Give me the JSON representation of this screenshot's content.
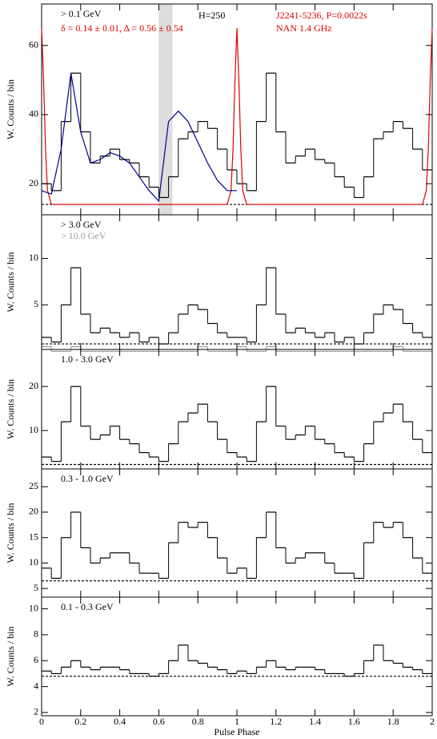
{
  "chart_data": [
    {
      "type": "histogram",
      "ylabel": "W. Counts / bin",
      "label": "> 0.1 GeV",
      "h_test": "H=250",
      "pulsar": "J2241-5236, P=0.0022s",
      "fit_params": "δ = 0.14 ± 0.01, Δ = 0.56 ± 0.54",
      "radio_label": "NAN 1.4 GHz",
      "bins": [
        0,
        0.05,
        0.1,
        0.15,
        0.2,
        0.25,
        0.3,
        0.35,
        0.4,
        0.45,
        0.5,
        0.55,
        0.6,
        0.65,
        0.7,
        0.75,
        0.8,
        0.85,
        0.9,
        0.95,
        1,
        1.05,
        1.1,
        1.15,
        1.2,
        1.25,
        1.3,
        1.35,
        1.4,
        1.45,
        1.5,
        1.55,
        1.6,
        1.65,
        1.7,
        1.75,
        1.8,
        1.85,
        1.9,
        1.95,
        2
      ],
      "values": [
        20,
        18,
        38,
        52,
        35,
        26,
        28,
        30,
        27,
        26,
        22,
        19,
        16,
        22,
        33,
        35,
        38,
        36,
        30,
        24,
        20,
        18,
        38,
        52,
        35,
        26,
        28,
        30,
        27,
        26,
        22,
        19,
        16,
        22,
        33,
        35,
        38,
        36,
        30,
        24
      ],
      "color": "#000000",
      "fit": {
        "color": "#00008b",
        "x": [
          0,
          0.05,
          0.1,
          0.15,
          0.2,
          0.25,
          0.3,
          0.35,
          0.4,
          0.45,
          0.5,
          0.55,
          0.6,
          0.65,
          0.7,
          0.75,
          0.8,
          0.85,
          0.9,
          0.95,
          1
        ],
        "values": [
          18,
          17,
          30,
          52,
          35,
          26,
          27,
          29,
          28,
          26,
          22,
          18,
          15,
          38,
          41,
          38,
          32,
          26,
          21,
          18,
          18
        ]
      },
      "radio": {
        "color": "#e00000",
        "x": [
          0,
          0.01,
          0.02,
          0.03,
          0.05,
          0.95,
          0.97,
          0.98,
          0.99,
          1,
          1.01,
          1.02,
          1.03,
          1.05,
          1.95,
          1.97,
          1.98,
          1.99,
          2
        ],
        "values": [
          65,
          50,
          30,
          18,
          14,
          14,
          18,
          30,
          50,
          65,
          50,
          30,
          18,
          14,
          14,
          18,
          30,
          50,
          65
        ]
      },
      "shade": [
        0.6,
        0.67
      ],
      "shade_color": "#dddddd",
      "background": 14,
      "xlim": [
        0,
        2
      ],
      "xticks": [
        0,
        0.2,
        0.4,
        0.6,
        0.8,
        1,
        1.2,
        1.4,
        1.6,
        1.8,
        2
      ],
      "show_xtick_labels": false,
      "ylim": [
        11,
        72
      ],
      "yticks": [
        20,
        40,
        60
      ]
    },
    {
      "type": "histogram",
      "ylabel": "W. Counts / bin",
      "label": "> 3.0 GeV",
      "sublabel": "> 10.0 GeV",
      "bins": [
        0,
        0.05,
        0.1,
        0.15,
        0.2,
        0.25,
        0.3,
        0.35,
        0.4,
        0.45,
        0.5,
        0.55,
        0.6,
        0.65,
        0.7,
        0.75,
        0.8,
        0.85,
        0.9,
        0.95,
        1,
        1.05,
        1.1,
        1.15,
        1.2,
        1.25,
        1.3,
        1.35,
        1.4,
        1.45,
        1.5,
        1.55,
        1.6,
        1.65,
        1.7,
        1.75,
        1.8,
        1.85,
        1.9,
        1.95,
        2
      ],
      "values": [
        1.5,
        1,
        5,
        9,
        4,
        2,
        2.5,
        2,
        1.5,
        2,
        1,
        1.5,
        0.8,
        2,
        4,
        5,
        4.5,
        3,
        2,
        1.5,
        1.5,
        1,
        5,
        9,
        4,
        2,
        2.5,
        2,
        1.5,
        2,
        1,
        1.5,
        0.8,
        2,
        4,
        5,
        4.5,
        3,
        2,
        1.5
      ],
      "color": "#000000",
      "sub_values": [
        0.5,
        0,
        0,
        0.5,
        0,
        0,
        0,
        0,
        0,
        0,
        0,
        0,
        0,
        0,
        0,
        0,
        0.5,
        0,
        0,
        0,
        0.5,
        0,
        0,
        0.5,
        0,
        0,
        0,
        0,
        0,
        0,
        0,
        0,
        0,
        0,
        0,
        0,
        0.5,
        0,
        0,
        0
      ],
      "sub_color": "#999999",
      "background": 0.8,
      "xlim": [
        0,
        2
      ],
      "xticks": [
        0,
        0.2,
        0.4,
        0.6,
        0.8,
        1,
        1.2,
        1.4,
        1.6,
        1.8,
        2
      ],
      "show_xtick_labels": false,
      "ylim": [
        0.2,
        14.7
      ],
      "yticks": [
        5,
        10
      ]
    },
    {
      "type": "histogram",
      "ylabel": "W. Counts / bin",
      "label": "1.0 - 3.0 GeV",
      "bins": [
        0,
        0.05,
        0.1,
        0.15,
        0.2,
        0.25,
        0.3,
        0.35,
        0.4,
        0.45,
        0.5,
        0.55,
        0.6,
        0.65,
        0.7,
        0.75,
        0.8,
        0.85,
        0.9,
        0.95,
        1,
        1.05,
        1.1,
        1.15,
        1.2,
        1.25,
        1.3,
        1.35,
        1.4,
        1.45,
        1.5,
        1.55,
        1.6,
        1.65,
        1.7,
        1.75,
        1.8,
        1.85,
        1.9,
        1.95,
        2
      ],
      "values": [
        4,
        3,
        12,
        20,
        11,
        8,
        9,
        11,
        8,
        7,
        5,
        4,
        3,
        7,
        12,
        14,
        16,
        12,
        8,
        5,
        4,
        3,
        12,
        20,
        11,
        8,
        9,
        11,
        8,
        7,
        5,
        4,
        3,
        7,
        12,
        14,
        16,
        12,
        8,
        5
      ],
      "color": "#000000",
      "background": 2.3,
      "xlim": [
        0,
        2
      ],
      "xticks": [
        0,
        0.2,
        0.4,
        0.6,
        0.8,
        1,
        1.2,
        1.4,
        1.6,
        1.8,
        2
      ],
      "show_xtick_labels": false,
      "ylim": [
        1.3,
        28.4
      ],
      "yticks": [
        10,
        20
      ]
    },
    {
      "type": "histogram",
      "ylabel": "W. Counts / bin",
      "label": "0.3 - 1.0 GeV",
      "bins": [
        0,
        0.05,
        0.1,
        0.15,
        0.2,
        0.25,
        0.3,
        0.35,
        0.4,
        0.45,
        0.5,
        0.55,
        0.6,
        0.65,
        0.7,
        0.75,
        0.8,
        0.85,
        0.9,
        0.95,
        1,
        1.05,
        1.1,
        1.15,
        1.2,
        1.25,
        1.3,
        1.35,
        1.4,
        1.45,
        1.5,
        1.55,
        1.6,
        1.65,
        1.7,
        1.75,
        1.8,
        1.85,
        1.9,
        1.95,
        2
      ],
      "values": [
        9,
        7,
        15,
        20,
        13,
        10,
        11,
        12,
        12,
        10,
        8,
        8,
        7,
        14,
        18,
        17,
        18,
        15,
        11,
        8,
        9,
        7,
        15,
        20,
        13,
        10,
        11,
        12,
        12,
        10,
        8,
        8,
        7,
        14,
        18,
        17,
        18,
        15,
        11,
        8
      ],
      "color": "#000000",
      "background": 6.5,
      "xlim": [
        0,
        2
      ],
      "xticks": [
        0,
        0.2,
        0.4,
        0.6,
        0.8,
        1,
        1.2,
        1.4,
        1.6,
        1.8,
        2
      ],
      "show_xtick_labels": false,
      "ylim": [
        3.3,
        28.5
      ],
      "yticks": [
        5,
        10,
        15,
        20,
        25
      ]
    },
    {
      "type": "histogram",
      "ylabel": "W. Counts / bin",
      "label": "0.1 - 0.3 GeV",
      "xlabel": "Pulse Phase",
      "bins": [
        0,
        0.05,
        0.1,
        0.15,
        0.2,
        0.25,
        0.3,
        0.35,
        0.4,
        0.45,
        0.5,
        0.55,
        0.6,
        0.65,
        0.7,
        0.75,
        0.8,
        0.85,
        0.9,
        0.95,
        1,
        1.05,
        1.1,
        1.15,
        1.2,
        1.25,
        1.3,
        1.35,
        1.4,
        1.45,
        1.5,
        1.55,
        1.6,
        1.65,
        1.7,
        1.75,
        1.8,
        1.85,
        1.9,
        1.95,
        2
      ],
      "values": [
        5.2,
        5,
        5.5,
        6,
        5.5,
        5.3,
        5.5,
        5.5,
        5.3,
        5,
        5,
        4.8,
        5,
        6,
        7.2,
        6,
        5.8,
        5.5,
        5.3,
        5,
        5.2,
        5,
        5.5,
        6,
        5.5,
        5.3,
        5.5,
        5.5,
        5.3,
        5,
        5,
        4.8,
        5,
        6,
        7.2,
        6,
        5.8,
        5.5,
        5.3,
        5
      ],
      "color": "#000000",
      "background": 4.8,
      "xlim": [
        0,
        2
      ],
      "xticks": [
        0,
        0.2,
        0.4,
        0.6,
        0.8,
        1,
        1.2,
        1.4,
        1.6,
        1.8,
        2
      ],
      "show_xtick_labels": true,
      "ylim": [
        1.75,
        10.9
      ],
      "yticks": [
        2,
        4,
        6,
        8,
        10
      ]
    }
  ]
}
